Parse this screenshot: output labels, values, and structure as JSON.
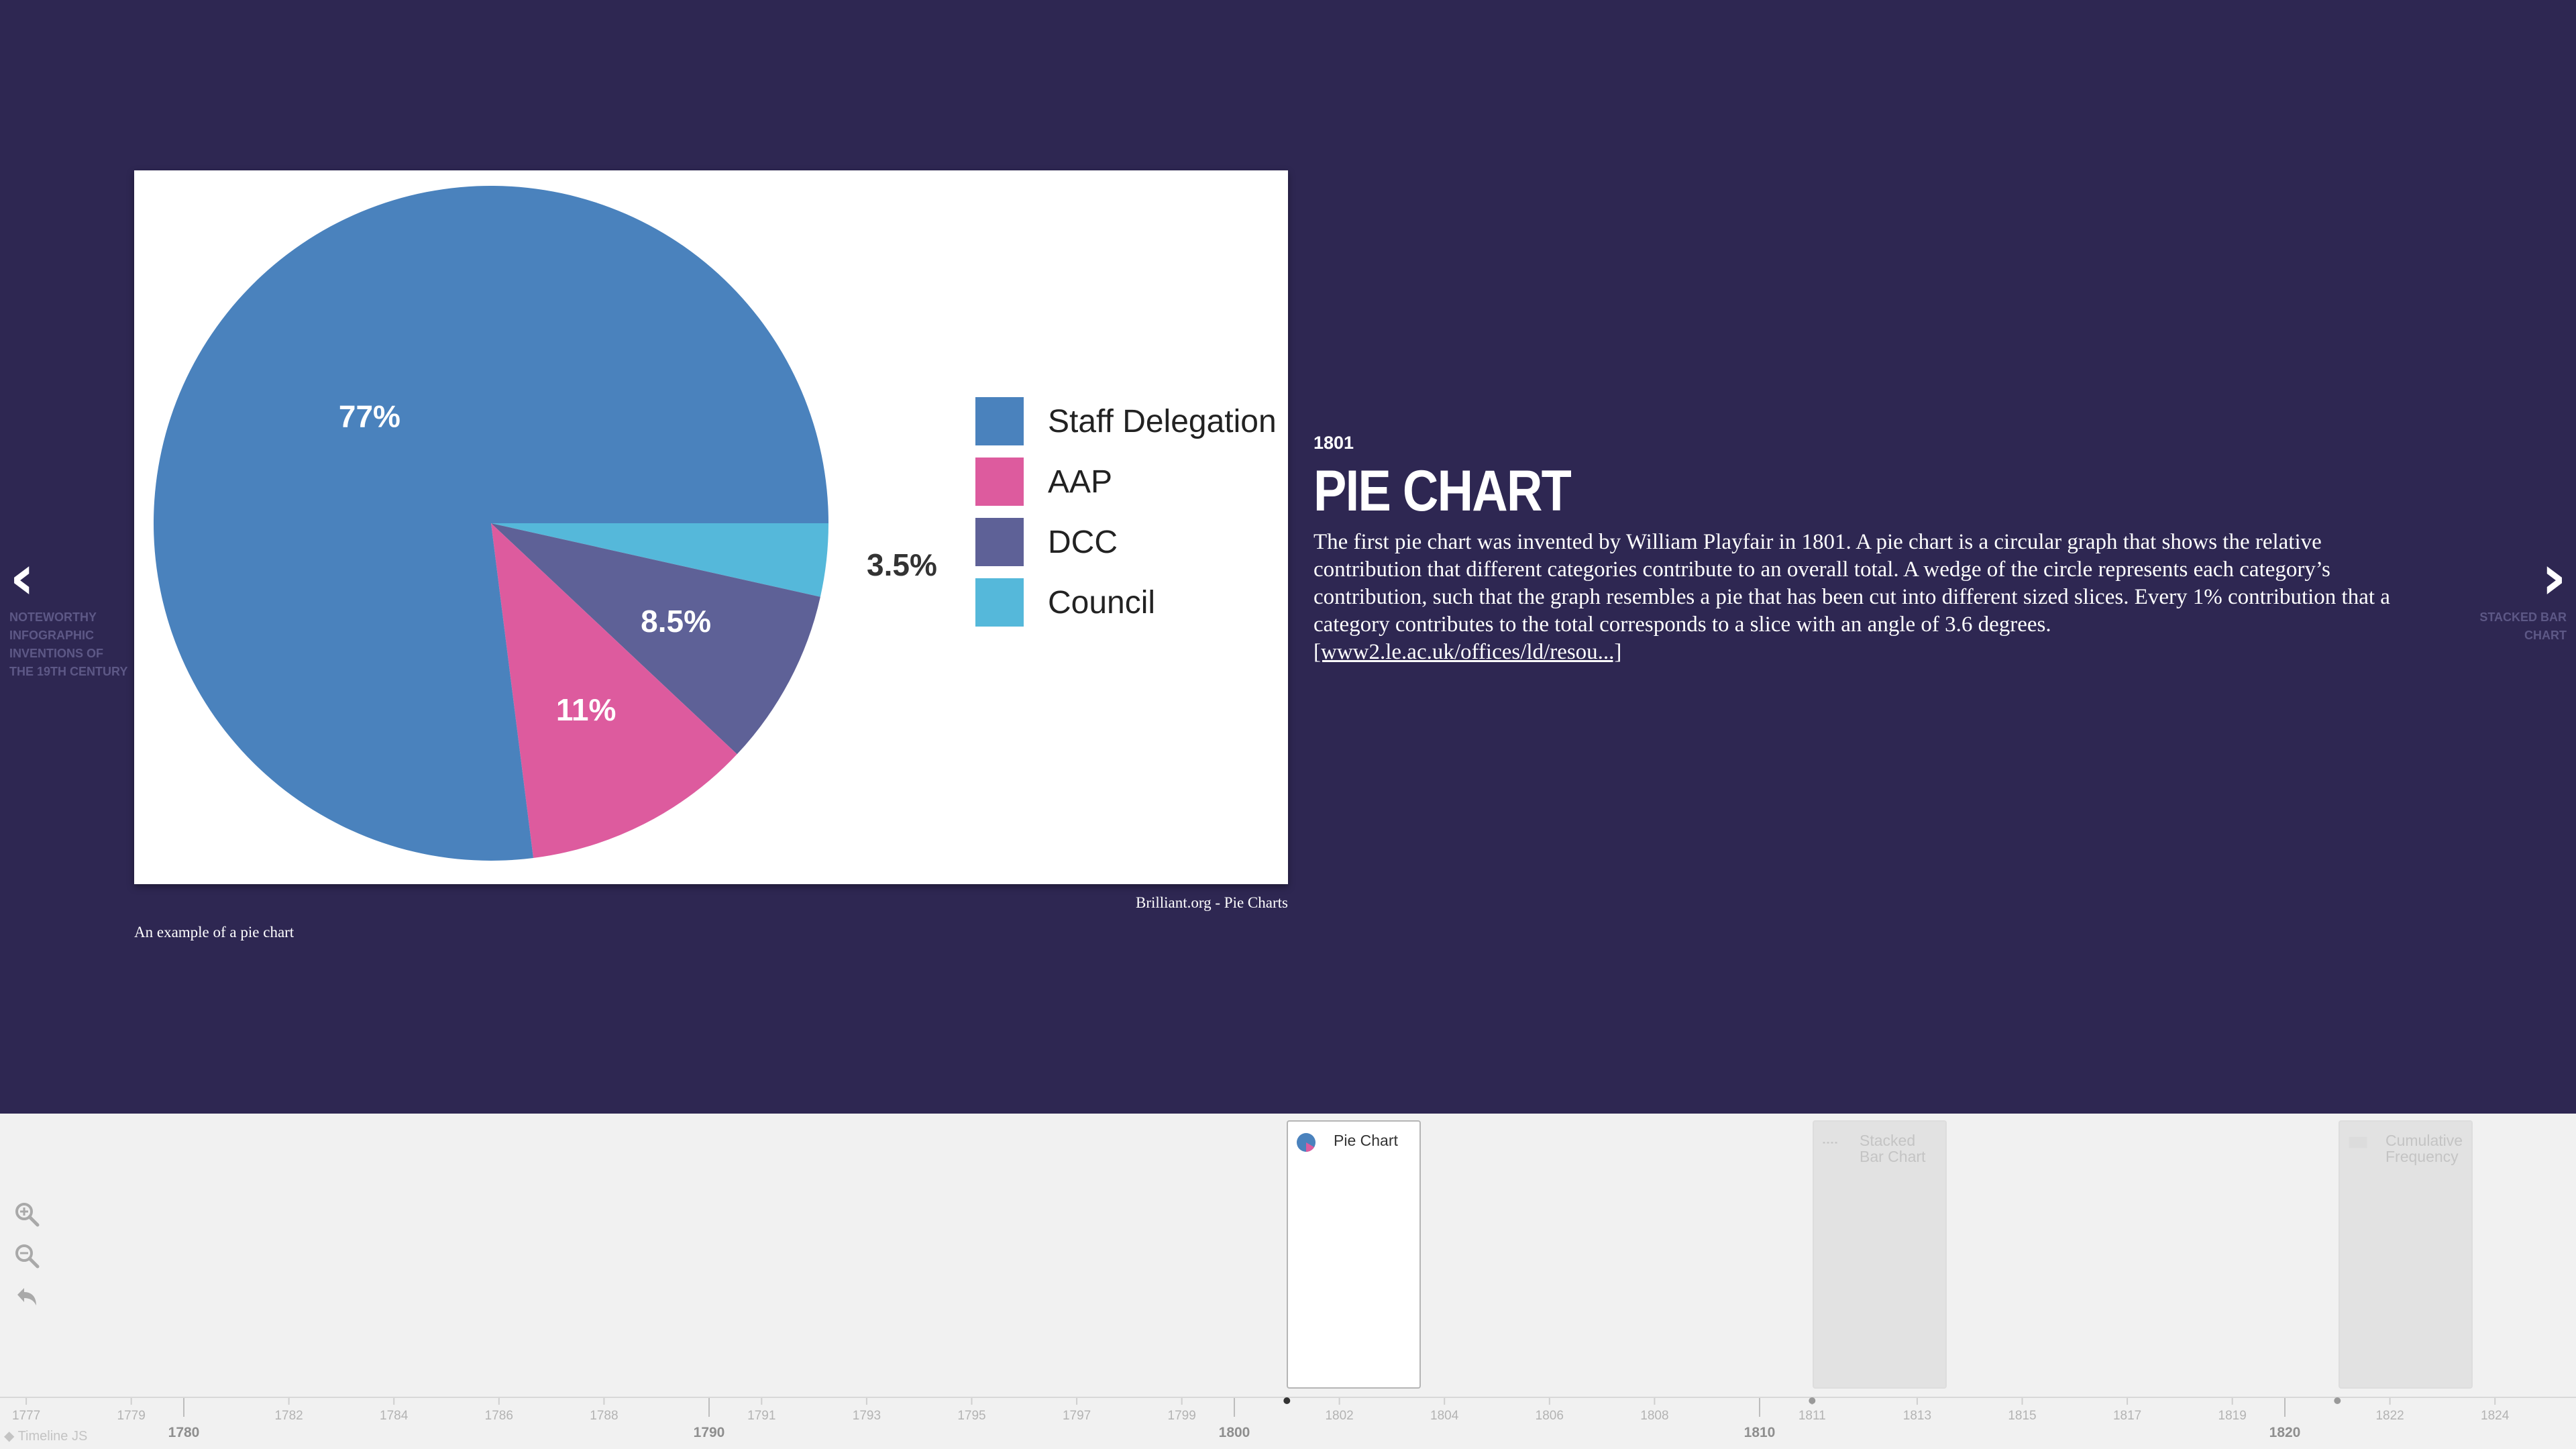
{
  "slide": {
    "date": "1801",
    "headline": "PIE CHART",
    "body": "The first pie chart was invented by William Playfair in 1801. A pie chart is a circular graph that shows the relative contribution that different categories contribute to an overall total. A wedge of the circle represents each category’s contribution, such that the graph resembles a pie that has been cut into different sized slices. Every 1% contribution that a category contributes to the total corresponds to a slice with an angle of 3.6 degrees.",
    "link_text": "[www2.le.ac.uk/offices/ld/resou...]",
    "media_credit": "Brilliant.org - Pie Charts",
    "media_caption": "An example of a pie chart"
  },
  "nav": {
    "prev_lines": [
      "NOTEWORTHY",
      "INFOGRAPHIC",
      "INVENTIONS OF",
      "THE 19TH CENTURY"
    ],
    "next_lines": [
      "STACKED BAR",
      "CHART"
    ]
  },
  "colors": {
    "background": "#2e2752",
    "timeline_bg": "#f1f1f1",
    "staff_delegation": "#4a82bd",
    "aap": "#dd5b9e",
    "dcc": "#5e6197",
    "council": "#55b8da"
  },
  "chart_data": {
    "type": "pie",
    "categories": [
      "Staff Delegation",
      "AAP",
      "DCC",
      "Council"
    ],
    "values": [
      77,
      11,
      8.5,
      3.5
    ],
    "labels": [
      "77%",
      "11%",
      "8.5%",
      "3.5%"
    ],
    "colors": [
      "#4a82bd",
      "#dd5b9e",
      "#5e6197",
      "#55b8da"
    ],
    "legend_position": "right"
  },
  "timeline": {
    "cards": [
      {
        "title": "Pie Chart",
        "state": "active"
      },
      {
        "title": "Stacked Bar Chart",
        "state": "inactive"
      },
      {
        "title": "Cumulative Frequency",
        "state": "inactive"
      }
    ],
    "minor_ticks": [
      "1777",
      "1779",
      "1782",
      "1784",
      "1786",
      "1788",
      "1791",
      "1793",
      "1795",
      "1797",
      "1799",
      "1802",
      "1804",
      "1806",
      "1808",
      "1811",
      "1813",
      "1815",
      "1817",
      "1819",
      "1822",
      "1824"
    ],
    "major_ticks": [
      "1780",
      "1790",
      "1800",
      "1810",
      "1820"
    ],
    "brand": "Timeline JS",
    "zoom_icons": [
      "zoom-in-icon",
      "zoom-out-icon",
      "back-to-start-icon"
    ]
  }
}
